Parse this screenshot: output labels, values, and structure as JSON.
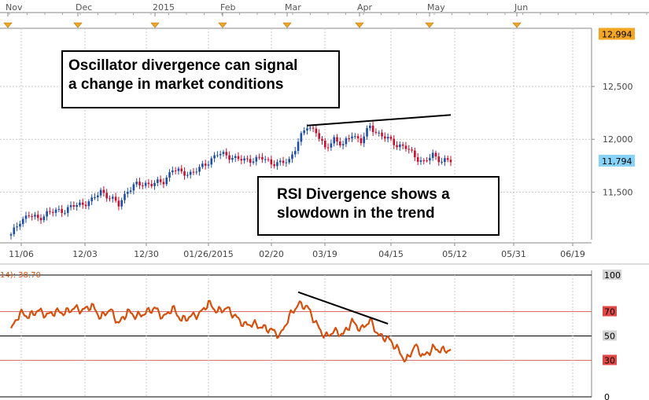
{
  "chart_data": {
    "type": "candlestick",
    "timeline": {
      "top_labels": [
        "Nov",
        "Dec",
        "2015",
        "Feb",
        "Mar",
        "Apr",
        "May",
        "Jun"
      ],
      "bottom_labels": [
        "11/06",
        "12/03",
        "12/30",
        "01/26/2015",
        "02/20",
        "03/19",
        "04/15",
        "05/12",
        "05/31",
        "06/19"
      ]
    },
    "price_panel": {
      "y_ticks": [
        "12,500",
        "12,000",
        "11,500"
      ],
      "tick_values": [
        12500,
        12000,
        11500
      ],
      "ylim": [
        11050,
        13050
      ],
      "high_label": "12,994",
      "last_label": "11,794",
      "high_value": 12994,
      "last_value": 11794,
      "close_points": [
        [
          0,
          11090
        ],
        [
          3,
          11230
        ],
        [
          6,
          11280
        ],
        [
          9,
          11250
        ],
        [
          12,
          11300
        ],
        [
          15,
          11320
        ],
        [
          18,
          11330
        ],
        [
          21,
          11370
        ],
        [
          24,
          11390
        ],
        [
          27,
          11420
        ],
        [
          30,
          11510
        ],
        [
          33,
          11450
        ],
        [
          36,
          11380
        ],
        [
          39,
          11520
        ],
        [
          42,
          11570
        ],
        [
          45,
          11580
        ],
        [
          48,
          11580
        ],
        [
          51,
          11600
        ],
        [
          54,
          11720
        ],
        [
          57,
          11680
        ],
        [
          60,
          11680
        ],
        [
          63,
          11720
        ],
        [
          66,
          11790
        ],
        [
          69,
          11860
        ],
        [
          72,
          11850
        ],
        [
          75,
          11820
        ],
        [
          78,
          11800
        ],
        [
          81,
          11810
        ],
        [
          84,
          11820
        ],
        [
          87,
          11780
        ],
        [
          90,
          11770
        ],
        [
          93,
          11800
        ],
        [
          96,
          11980
        ],
        [
          99,
          12120
        ],
        [
          102,
          12080
        ],
        [
          105,
          11900
        ],
        [
          108,
          12010
        ],
        [
          111,
          11940
        ],
        [
          114,
          12050
        ],
        [
          117,
          11980
        ],
        [
          120,
          12120
        ],
        [
          123,
          12050
        ],
        [
          126,
          12000
        ],
        [
          129,
          11950
        ],
        [
          132,
          11920
        ],
        [
          135,
          11840
        ],
        [
          138,
          11780
        ],
        [
          141,
          11850
        ],
        [
          144,
          11800
        ],
        [
          147,
          11794
        ]
      ]
    },
    "rsi_panel": {
      "label": "14): 38.70",
      "levels": [
        "100",
        "70",
        "50",
        "30",
        "0"
      ],
      "level_values": [
        100,
        70,
        50,
        30,
        0
      ],
      "points": [
        [
          0,
          55
        ],
        [
          3,
          69
        ],
        [
          6,
          66
        ],
        [
          9,
          71
        ],
        [
          12,
          67
        ],
        [
          15,
          70
        ],
        [
          18,
          69
        ],
        [
          21,
          73
        ],
        [
          24,
          71
        ],
        [
          27,
          75
        ],
        [
          30,
          65
        ],
        [
          33,
          72
        ],
        [
          36,
          60
        ],
        [
          39,
          70
        ],
        [
          42,
          66
        ],
        [
          45,
          69
        ],
        [
          48,
          73
        ],
        [
          51,
          65
        ],
        [
          54,
          73
        ],
        [
          57,
          63
        ],
        [
          60,
          66
        ],
        [
          63,
          68
        ],
        [
          66,
          77
        ],
        [
          69,
          70
        ],
        [
          72,
          73
        ],
        [
          75,
          66
        ],
        [
          78,
          59
        ],
        [
          81,
          60
        ],
        [
          84,
          57
        ],
        [
          87,
          55
        ],
        [
          90,
          50
        ],
        [
          93,
          66
        ],
        [
          96,
          76
        ],
        [
          99,
          74
        ],
        [
          102,
          60
        ],
        [
          105,
          49
        ],
        [
          108,
          54
        ],
        [
          111,
          51
        ],
        [
          114,
          62
        ],
        [
          117,
          55
        ],
        [
          120,
          63
        ],
        [
          123,
          50
        ],
        [
          126,
          48
        ],
        [
          129,
          40
        ],
        [
          132,
          29
        ],
        [
          135,
          42
        ],
        [
          138,
          33
        ],
        [
          141,
          40
        ],
        [
          144,
          38
        ],
        [
          147,
          38.7
        ]
      ]
    },
    "trendlines": [
      {
        "panel": "price",
        "from": [
          99,
          12130
        ],
        "to": [
          147,
          12230
        ]
      },
      {
        "panel": "rsi",
        "from": [
          96,
          86
        ],
        "to": [
          126,
          60
        ]
      }
    ],
    "annotations": [
      {
        "lines": [
          "Oscillator divergence can signal",
          "a change in market conditions"
        ]
      },
      {
        "lines": [
          "RSI Divergence shows a",
          "slowdown in the trend"
        ]
      }
    ],
    "colors": {
      "up": "#1f4ea6",
      "down": "#c8102e",
      "rsi": "#d64f0c",
      "overbought": "#d04040",
      "high_badge": "#f2a623",
      "last_badge": "#87d3f7",
      "grid": "#c8c8c8"
    }
  }
}
